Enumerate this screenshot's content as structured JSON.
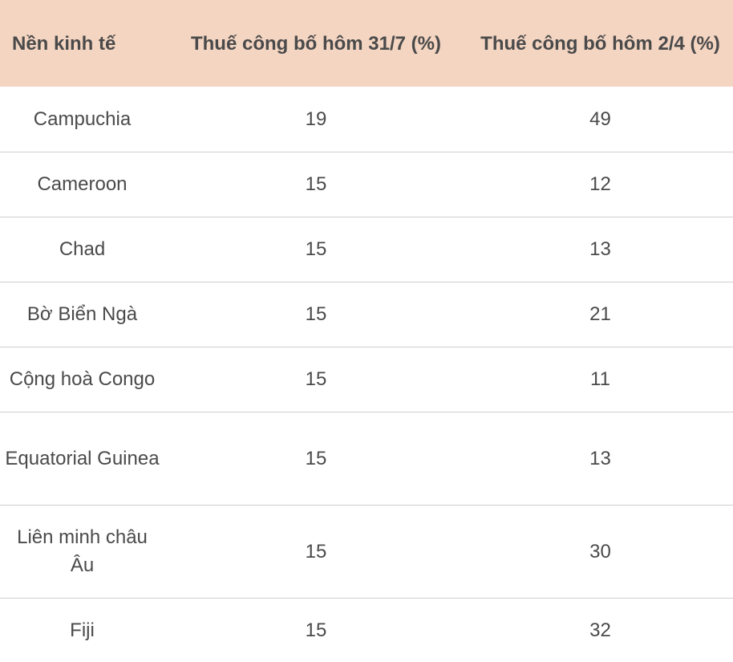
{
  "table": {
    "headers": {
      "economy": "Nền kinh tế",
      "tariff_jul31": "Thuế công bố hôm 31/7 (%)",
      "tariff_apr2": "Thuế công bố hôm 2/4 (%)"
    },
    "rows": [
      {
        "economy": "Campuchia",
        "tariff_jul31": "19",
        "tariff_apr2": "49"
      },
      {
        "economy": "Cameroon",
        "tariff_jul31": "15",
        "tariff_apr2": "12"
      },
      {
        "economy": "Chad",
        "tariff_jul31": "15",
        "tariff_apr2": "13"
      },
      {
        "economy": "Bờ Biển Ngà",
        "tariff_jul31": "15",
        "tariff_apr2": "21"
      },
      {
        "economy": "Cộng hoà Congo",
        "tariff_jul31": "15",
        "tariff_apr2": "11"
      },
      {
        "economy": "Equatorial Guinea",
        "tariff_jul31": "15",
        "tariff_apr2": "13"
      },
      {
        "economy": "Liên minh châu Âu",
        "tariff_jul31": "15",
        "tariff_apr2": "30"
      },
      {
        "economy": "Fiji",
        "tariff_jul31": "15",
        "tariff_apr2": "32"
      }
    ]
  },
  "colors": {
    "header_background": "#f4d5c2",
    "row_divider": "#cfcfcf",
    "text": "#4a4a4a"
  }
}
